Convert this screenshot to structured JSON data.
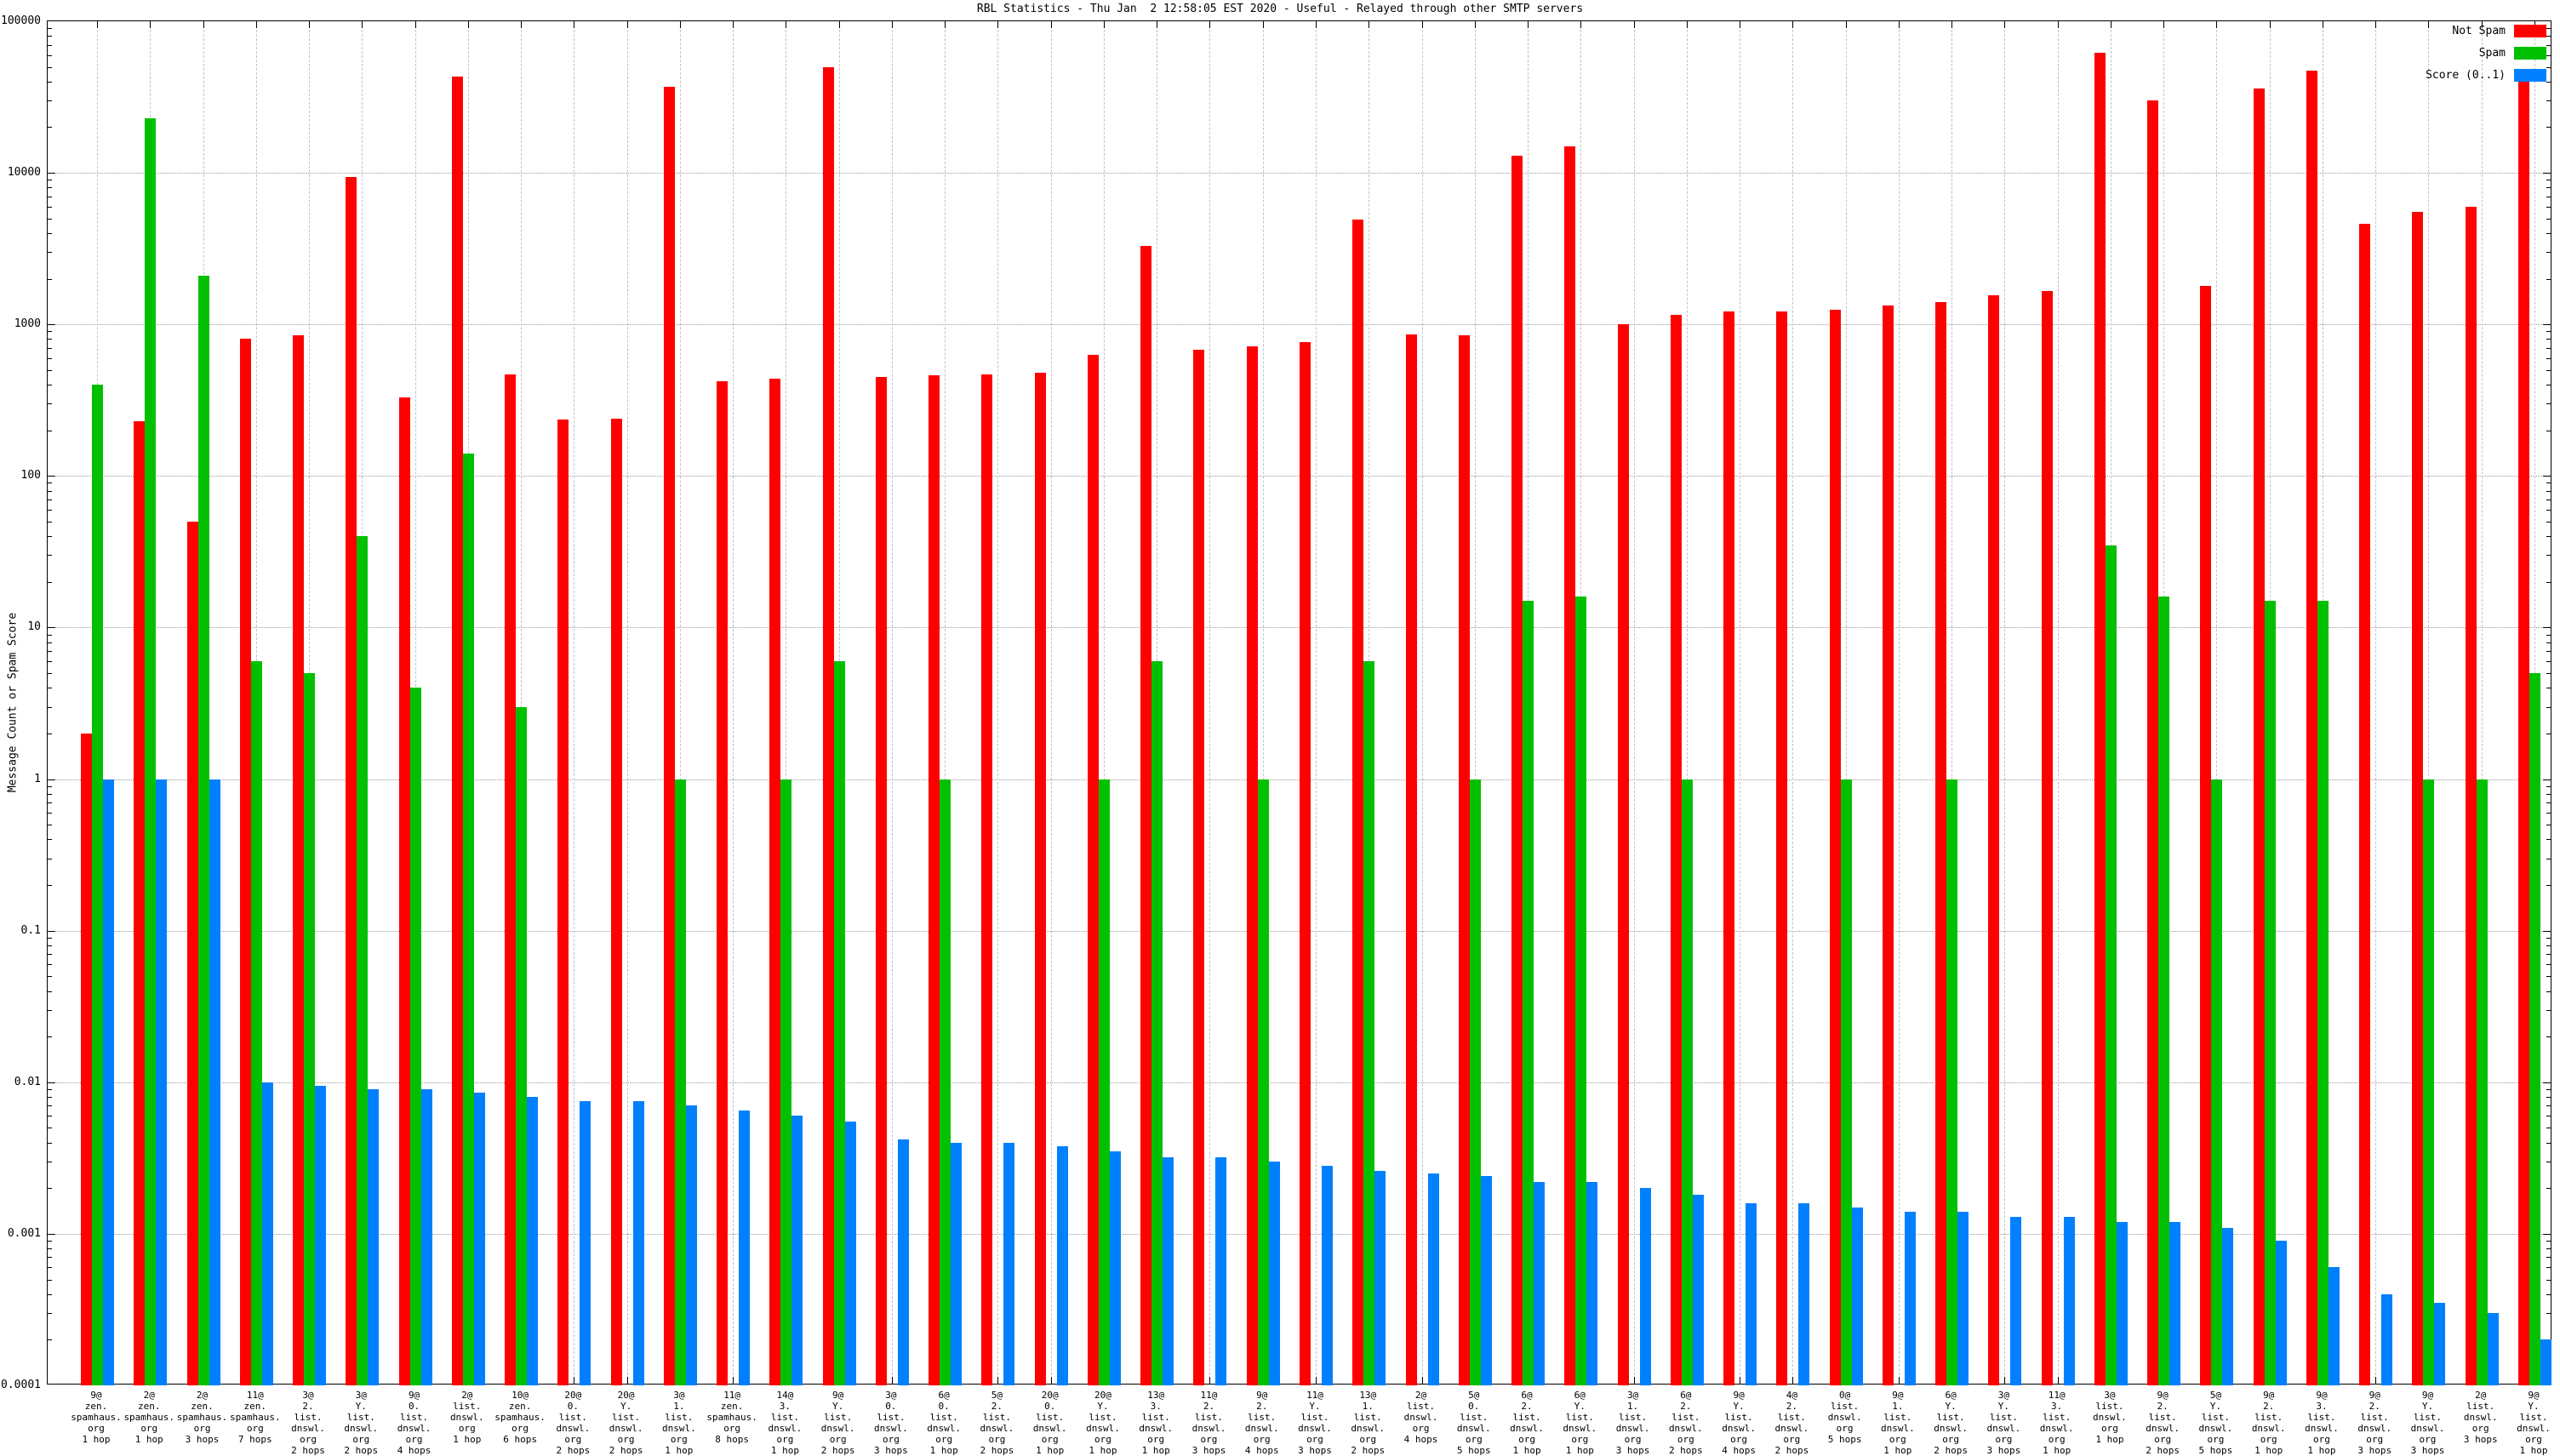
{
  "title": "RBL Statistics - Thu Jan  2 12:58:05 EST 2020 - Useful - Relayed through other SMTP servers",
  "y_axis": {
    "label": "Message Count or Spam Score",
    "ticks": [
      "100000",
      "10000",
      "1000",
      "100",
      "10",
      "1",
      "0.1",
      "0.01",
      "0.001",
      "0.0001"
    ]
  },
  "legend": [
    {
      "label": "Not Spam",
      "color": "#ff0000"
    },
    {
      "label": "Spam",
      "color": "#00c000"
    },
    {
      "label": "Score (0..1)",
      "color": "#0080ff"
    }
  ],
  "chart_data": {
    "type": "bar",
    "y_scale": "log",
    "ylim": [
      0.0001,
      100000
    ],
    "grid": true,
    "legend_position": "top-right",
    "title": "RBL Statistics - Thu Jan  2 12:58:05 EST 2020 - Useful - Relayed through other SMTP servers",
    "xlabel": "",
    "ylabel": "Message Count or Spam Score",
    "categories": [
      [
        "9@",
        "zen.",
        "spamhaus.",
        "org",
        "1 hop"
      ],
      [
        "2@",
        "zen.",
        "spamhaus.",
        "org",
        "1 hop"
      ],
      [
        "2@",
        "zen.",
        "spamhaus.",
        "org",
        "3 hops"
      ],
      [
        "11@",
        "zen.",
        "spamhaus.",
        "org",
        "7 hops"
      ],
      [
        "3@",
        "2.",
        "list.",
        "dnswl.",
        "org",
        "2 hops"
      ],
      [
        "3@",
        "Y.",
        "list.",
        "dnswl.",
        "org",
        "2 hops"
      ],
      [
        "9@",
        "0.",
        "list.",
        "dnswl.",
        "org",
        "4 hops"
      ],
      [
        "2@",
        "list.",
        "dnswl.",
        "org",
        "1 hop"
      ],
      [
        "10@",
        "zen.",
        "spamhaus.",
        "org",
        "6 hops"
      ],
      [
        "20@",
        "0.",
        "list.",
        "dnswl.",
        "org",
        "2 hops"
      ],
      [
        "20@",
        "Y.",
        "list.",
        "dnswl.",
        "org",
        "2 hops"
      ],
      [
        "3@",
        "1.",
        "list.",
        "dnswl.",
        "org",
        "1 hop"
      ],
      [
        "11@",
        "zen.",
        "spamhaus.",
        "org",
        "8 hops"
      ],
      [
        "14@",
        "3.",
        "list.",
        "dnswl.",
        "org",
        "1 hop"
      ],
      [
        "9@",
        "Y.",
        "list.",
        "dnswl.",
        "org",
        "2 hops"
      ],
      [
        "3@",
        "0.",
        "list.",
        "dnswl.",
        "org",
        "3 hops"
      ],
      [
        "6@",
        "0.",
        "list.",
        "dnswl.",
        "org",
        "1 hop"
      ],
      [
        "5@",
        "2.",
        "list.",
        "dnswl.",
        "org",
        "2 hops"
      ],
      [
        "20@",
        "0.",
        "list.",
        "dnswl.",
        "org",
        "1 hop"
      ],
      [
        "20@",
        "Y.",
        "list.",
        "dnswl.",
        "org",
        "1 hop"
      ],
      [
        "13@",
        "3.",
        "list.",
        "dnswl.",
        "org",
        "1 hop"
      ],
      [
        "11@",
        "2.",
        "list.",
        "dnswl.",
        "org",
        "3 hops"
      ],
      [
        "9@",
        "2.",
        "list.",
        "dnswl.",
        "org",
        "4 hops"
      ],
      [
        "11@",
        "Y.",
        "list.",
        "dnswl.",
        "org",
        "3 hops"
      ],
      [
        "13@",
        "1.",
        "list.",
        "dnswl.",
        "org",
        "2 hops"
      ],
      [
        "2@",
        "list.",
        "dnswl.",
        "org",
        "4 hops"
      ],
      [
        "5@",
        "0.",
        "list.",
        "dnswl.",
        "org",
        "5 hops"
      ],
      [
        "6@",
        "2.",
        "list.",
        "dnswl.",
        "org",
        "1 hop"
      ],
      [
        "6@",
        "Y.",
        "list.",
        "dnswl.",
        "org",
        "1 hop"
      ],
      [
        "3@",
        "1.",
        "list.",
        "dnswl.",
        "org",
        "3 hops"
      ],
      [
        "6@",
        "2.",
        "list.",
        "dnswl.",
        "org",
        "2 hops"
      ],
      [
        "9@",
        "Y.",
        "list.",
        "dnswl.",
        "org",
        "4 hops"
      ],
      [
        "4@",
        "2.",
        "list.",
        "dnswl.",
        "org",
        "2 hops"
      ],
      [
        "0@",
        "list.",
        "dnswl.",
        "org",
        "5 hops"
      ],
      [
        "9@",
        "1.",
        "list.",
        "dnswl.",
        "org",
        "1 hop"
      ],
      [
        "6@",
        "Y.",
        "list.",
        "dnswl.",
        "org",
        "2 hops"
      ],
      [
        "3@",
        "Y.",
        "list.",
        "dnswl.",
        "org",
        "3 hops"
      ],
      [
        "11@",
        "3.",
        "list.",
        "dnswl.",
        "org",
        "1 hop"
      ],
      [
        "3@",
        "list.",
        "dnswl.",
        "org",
        "1 hop"
      ],
      [
        "9@",
        "2.",
        "list.",
        "dnswl.",
        "org",
        "2 hops"
      ],
      [
        "5@",
        "Y.",
        "list.",
        "dnswl.",
        "org",
        "5 hops"
      ],
      [
        "9@",
        "2.",
        "list.",
        "dnswl.",
        "org",
        "1 hop"
      ],
      [
        "9@",
        "3.",
        "list.",
        "dnswl.",
        "org",
        "1 hop"
      ],
      [
        "9@",
        "2.",
        "list.",
        "dnswl.",
        "org",
        "3 hops"
      ],
      [
        "9@",
        "Y.",
        "list.",
        "dnswl.",
        "org",
        "3 hops"
      ],
      [
        "2@",
        "list.",
        "dnswl.",
        "org",
        "3 hops"
      ],
      [
        "9@",
        "Y.",
        "list.",
        "dnswl.",
        "org",
        "1 hop"
      ]
    ],
    "series": [
      {
        "name": "Not Spam",
        "color": "#ff0000",
        "values": [
          2,
          230,
          50,
          800,
          850,
          9400,
          330,
          43000,
          470,
          235,
          240,
          37000,
          420,
          440,
          50000,
          450,
          460,
          465,
          480,
          630,
          3300,
          680,
          715,
          760,
          4900,
          860,
          850,
          13000,
          15000,
          1000,
          1150,
          1210,
          1210,
          1250,
          1340,
          1410,
          1550,
          1650,
          62000,
          30000,
          1800,
          36000,
          47000,
          4600,
          5500,
          6000,
          48000
        ]
      },
      {
        "name": "Spam",
        "color": "#00c000",
        "values": [
          400,
          23000,
          2100,
          6,
          5,
          40,
          4,
          140,
          3,
          null,
          null,
          1,
          null,
          1,
          6,
          null,
          1,
          null,
          null,
          1,
          6,
          null,
          1,
          null,
          6,
          null,
          1,
          15,
          16,
          null,
          1,
          null,
          null,
          1,
          null,
          1,
          null,
          null,
          35,
          16,
          1,
          15,
          15,
          null,
          1,
          1,
          5
        ]
      },
      {
        "name": "Score (0..1)",
        "color": "#0080ff",
        "values": [
          1,
          1,
          1,
          0.01,
          0.0095,
          0.009,
          0.009,
          0.0085,
          0.008,
          0.0075,
          0.0075,
          0.007,
          0.0065,
          0.006,
          0.0055,
          0.0042,
          0.004,
          0.004,
          0.0038,
          0.0035,
          0.0032,
          0.0032,
          0.003,
          0.0028,
          0.0026,
          0.0025,
          0.0024,
          0.0022,
          0.0022,
          0.002,
          0.0018,
          0.0016,
          0.0016,
          0.0015,
          0.0014,
          0.0014,
          0.0013,
          0.0013,
          0.0012,
          0.0012,
          0.0011,
          0.0009,
          0.0006,
          0.0004,
          0.00035,
          0.0003,
          0.0002
        ]
      }
    ]
  }
}
